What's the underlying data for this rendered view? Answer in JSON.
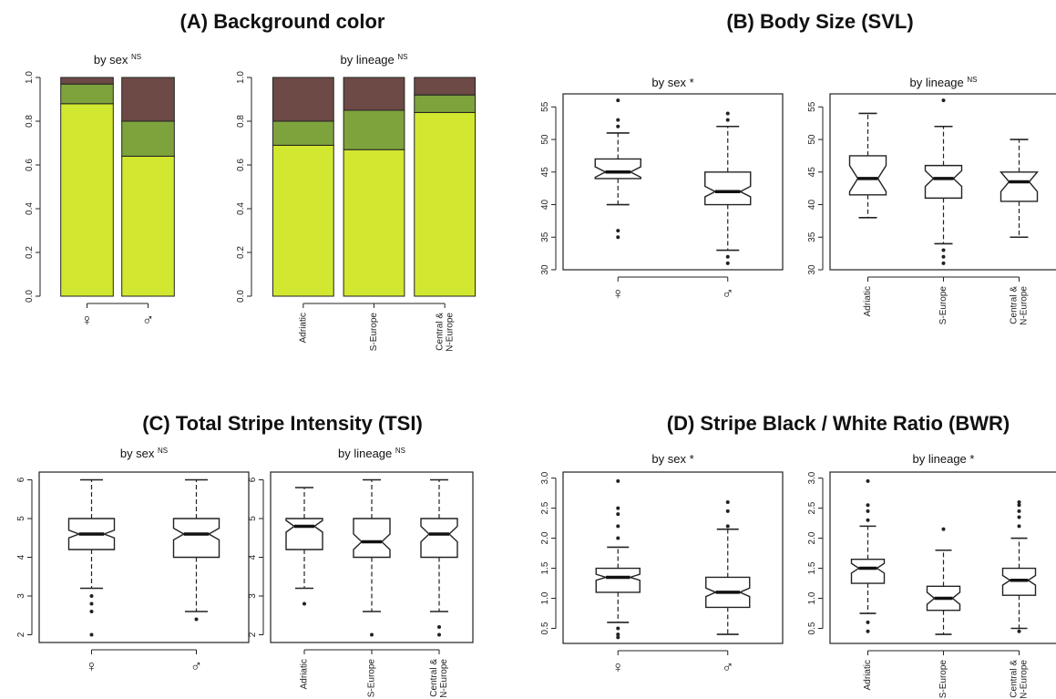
{
  "panels": [
    {
      "letter": "A",
      "title": "(A) Background color"
    },
    {
      "letter": "B",
      "title": "(B) Body Size (SVL)"
    },
    {
      "letter": "C",
      "title": "(C) Total Stripe Intensity (TSI)"
    },
    {
      "letter": "D",
      "title": "(D) Stripe Black / White Ratio (BWR)"
    }
  ],
  "colors": {
    "light_green": "#d2e830",
    "mid_green": "#7ea33c",
    "brown": "#6d4a46",
    "box_line": "#111111"
  },
  "chart_data": [
    {
      "panel": "A",
      "type": "bar",
      "stacked": true,
      "subtitle": "by sex",
      "sig": "NS",
      "categories": [
        "♀",
        "♂"
      ],
      "series": [
        {
          "values": [
            0.88,
            0.64
          ],
          "color": "#d2e830"
        },
        {
          "values": [
            0.09,
            0.16
          ],
          "color": "#7ea33c"
        },
        {
          "values": [
            0.03,
            0.2
          ],
          "color": "#6d4a46"
        }
      ],
      "ylim": [
        0,
        1
      ],
      "yticks": [
        0.0,
        0.2,
        0.4,
        0.6,
        0.8,
        1.0
      ],
      "ytick_labels": [
        "0.0",
        "0.2",
        "0.4",
        "0.6",
        "0.8",
        "1.0"
      ]
    },
    {
      "panel": "A",
      "type": "bar",
      "stacked": true,
      "subtitle": "by lineage",
      "sig": "NS",
      "categories": [
        "Adriatic",
        "S-Europe",
        "Central &\nN-Europe"
      ],
      "series": [
        {
          "values": [
            0.69,
            0.67,
            0.84
          ],
          "color": "#d2e830"
        },
        {
          "values": [
            0.11,
            0.18,
            0.08
          ],
          "color": "#7ea33c"
        },
        {
          "values": [
            0.2,
            0.15,
            0.08
          ],
          "color": "#6d4a46"
        }
      ],
      "ylim": [
        0,
        1
      ],
      "yticks": [
        0.0,
        0.2,
        0.4,
        0.6,
        0.8,
        1.0
      ],
      "ytick_labels": [
        "0.0",
        "0.2",
        "0.4",
        "0.6",
        "0.8",
        "1.0"
      ]
    },
    {
      "panel": "B",
      "type": "box",
      "subtitle": "by sex",
      "sig": "*",
      "categories": [
        "♀",
        "♂"
      ],
      "ylim": [
        30,
        57
      ],
      "yticks": [
        30,
        35,
        40,
        45,
        50,
        55
      ],
      "boxes": [
        {
          "median": 45,
          "q1": 44,
          "q3": 47,
          "notch": 0.8,
          "whisker_low": 40,
          "whisker_high": 51,
          "outliers": [
            35,
            36,
            52,
            53,
            56
          ]
        },
        {
          "median": 42,
          "q1": 40,
          "q3": 45,
          "notch": 0.8,
          "whisker_low": 33,
          "whisker_high": 52,
          "outliers": [
            31,
            32,
            53,
            54
          ]
        }
      ]
    },
    {
      "panel": "B",
      "type": "box",
      "subtitle": "by lineage",
      "sig": "NS",
      "categories": [
        "Adriatic",
        "S-Europe",
        "Central &\nN-Europe"
      ],
      "ylim": [
        30,
        57
      ],
      "yticks": [
        30,
        35,
        40,
        45,
        50,
        55
      ],
      "boxes": [
        {
          "median": 44,
          "q1": 41.5,
          "q3": 47.5,
          "notch": 2,
          "whisker_low": 38,
          "whisker_high": 54,
          "outliers": []
        },
        {
          "median": 44,
          "q1": 41,
          "q3": 46,
          "notch": 1.2,
          "whisker_low": 34,
          "whisker_high": 52,
          "outliers": [
            31,
            32,
            33,
            56
          ]
        },
        {
          "median": 43.5,
          "q1": 40.5,
          "q3": 45,
          "notch": 1.5,
          "whisker_low": 35,
          "whisker_high": 50,
          "outliers": []
        }
      ]
    },
    {
      "panel": "C",
      "type": "box",
      "subtitle": "by sex",
      "sig": "NS",
      "categories": [
        "♀",
        "♂"
      ],
      "ylim": [
        1.8,
        6.2
      ],
      "yticks": [
        2,
        3,
        4,
        5,
        6
      ],
      "boxes": [
        {
          "median": 4.6,
          "q1": 4.2,
          "q3": 5.0,
          "notch": 0.1,
          "whisker_low": 3.2,
          "whisker_high": 6.0,
          "outliers": [
            2.0,
            2.6,
            2.8,
            3.0
          ]
        },
        {
          "median": 4.6,
          "q1": 4.0,
          "q3": 5.0,
          "notch": 0.15,
          "whisker_low": 2.6,
          "whisker_high": 6.0,
          "outliers": [
            2.4
          ]
        }
      ]
    },
    {
      "panel": "C",
      "type": "box",
      "subtitle": "by lineage",
      "sig": "NS",
      "categories": [
        "Adriatic",
        "S-Europe",
        "Central &\nN-Europe"
      ],
      "ylim": [
        1.8,
        6.2
      ],
      "yticks": [
        2,
        3,
        4,
        5,
        6
      ],
      "boxes": [
        {
          "median": 4.8,
          "q1": 4.2,
          "q3": 5.0,
          "notch": 0.15,
          "whisker_low": 3.2,
          "whisker_high": 5.8,
          "outliers": [
            2.8
          ]
        },
        {
          "median": 4.4,
          "q1": 4.0,
          "q3": 5.0,
          "notch": 0.2,
          "whisker_low": 2.6,
          "whisker_high": 6.0,
          "outliers": [
            2.0
          ]
        },
        {
          "median": 4.6,
          "q1": 4.0,
          "q3": 5.0,
          "notch": 0.2,
          "whisker_low": 2.6,
          "whisker_high": 6.0,
          "outliers": [
            2.0,
            2.2
          ]
        }
      ]
    },
    {
      "panel": "D",
      "type": "box",
      "subtitle": "by sex",
      "sig": "*",
      "categories": [
        "♀",
        "♂"
      ],
      "ylim": [
        0.25,
        3.1
      ],
      "yticks": [
        0.5,
        1.0,
        1.5,
        2.0,
        2.5,
        3.0
      ],
      "ytick_labels": [
        "0.5",
        "1.0",
        "1.5",
        "2.0",
        "2.5",
        "3.0"
      ],
      "boxes": [
        {
          "median": 1.35,
          "q1": 1.1,
          "q3": 1.5,
          "notch": 0.05,
          "whisker_low": 0.6,
          "whisker_high": 1.85,
          "outliers": [
            0.35,
            0.4,
            0.5,
            2.0,
            2.2,
            2.4,
            2.5,
            2.95
          ]
        },
        {
          "median": 1.1,
          "q1": 0.85,
          "q3": 1.35,
          "notch": 0.07,
          "whisker_low": 0.4,
          "whisker_high": 2.15,
          "outliers": [
            2.2,
            2.45,
            2.6
          ]
        }
      ]
    },
    {
      "panel": "D",
      "type": "box",
      "subtitle": "by lineage",
      "sig": "*",
      "categories": [
        "Adriatic",
        "S-Europe",
        "Central &\nN-Europe"
      ],
      "ylim": [
        0.25,
        3.1
      ],
      "yticks": [
        0.5,
        1.0,
        1.5,
        2.0,
        2.5,
        3.0
      ],
      "ytick_labels": [
        "0.5",
        "1.0",
        "1.5",
        "2.0",
        "2.5",
        "3.0"
      ],
      "boxes": [
        {
          "median": 1.5,
          "q1": 1.25,
          "q3": 1.65,
          "notch": 0.08,
          "whisker_low": 0.75,
          "whisker_high": 2.2,
          "outliers": [
            0.45,
            0.6,
            2.3,
            2.45,
            2.55,
            2.95
          ]
        },
        {
          "median": 1.0,
          "q1": 0.8,
          "q3": 1.2,
          "notch": 0.1,
          "whisker_low": 0.4,
          "whisker_high": 1.8,
          "outliers": [
            2.15
          ]
        },
        {
          "median": 1.3,
          "q1": 1.05,
          "q3": 1.5,
          "notch": 0.08,
          "whisker_low": 0.5,
          "whisker_high": 2.0,
          "outliers": [
            0.45,
            2.2,
            2.35,
            2.45,
            2.55,
            2.6
          ]
        }
      ]
    }
  ]
}
